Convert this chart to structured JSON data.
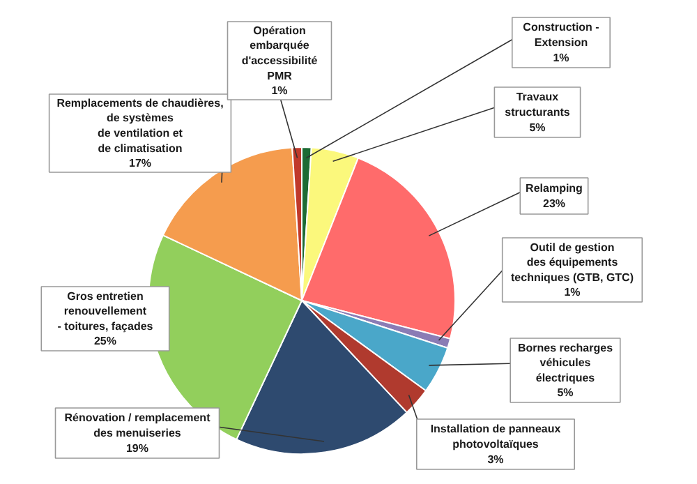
{
  "chart_data": {
    "type": "pie",
    "categories": [
      "Construction - Extension",
      "Travaux structurants",
      "Relamping",
      "Outil de gestion des équipements techniques (GTB, GTC)",
      "Bornes recharges véhicules électriques",
      "Installation de panneaux photovoltaïques",
      "Rénovation / remplacement des menuiseries",
      "Gros entretien renouvellement - toitures, façades",
      "Remplacements de chaudières, de systèmes de ventilation et de climatisation",
      "Opération embarquée d'accessibilité PMR"
    ],
    "values": [
      1,
      5,
      23,
      1,
      5,
      3,
      19,
      25,
      17,
      1
    ],
    "colors": [
      "#1d6b35",
      "#fbf87c",
      "#ff6b6b",
      "#8a7cb5",
      "#4aa7c9",
      "#b03a2e",
      "#2e4a6f",
      "#92cf5c",
      "#f59c4e",
      "#c0392b"
    ],
    "value_labels": [
      "1%",
      "5%",
      "23%",
      "1%",
      "5%",
      "3%",
      "19%",
      "25%",
      "17%",
      "1%"
    ]
  }
}
